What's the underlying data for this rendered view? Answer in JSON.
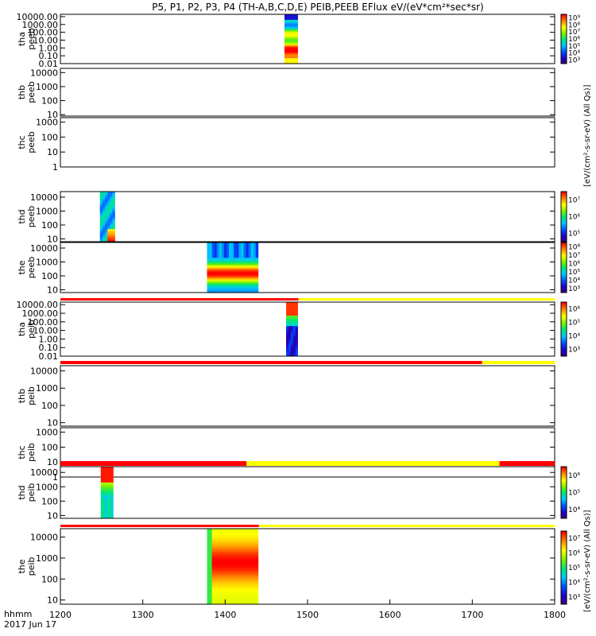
{
  "chart_data": {
    "type": "heatmap",
    "title": "P5, P1, P2, P3, P4 (TH-A,B,C,D,E) PEIB,PEEB EFlux eV/(eV*cm²*sec*sr)",
    "x_range": [
      1200,
      1800
    ],
    "x_ticks": [
      "1200",
      "1300",
      "1400",
      "1500",
      "1600",
      "1700",
      "1800"
    ],
    "x_footer": {
      "line1": "hhmm",
      "line2": "2017 Jun 17"
    },
    "colorbar_unit": "eV/(cm²-s-sr-eV) (All Qs)",
    "colorbar_label_top": "[eV/(cm²-s-sr-eV) (All Qs)]",
    "colorbar_label_bottom": "[eV/(cm²-s-sr-eV) (All Qs)]",
    "panels": [
      {
        "id": "tha_peeb",
        "probe": "tha",
        "product": "peeb",
        "y_ticks": [
          "0.01",
          "0.10",
          "1.00",
          "10.00",
          "100.00",
          "1000.00",
          "10000.00"
        ],
        "y_log_range": [
          -2,
          4.3
        ],
        "colorbar_ticks": [
          "10³",
          "10⁴",
          "10⁵",
          "10⁶",
          "10⁷",
          "10⁸",
          "10⁹"
        ],
        "data_blocks": [
          {
            "t_start": 1472,
            "t_end": 1488,
            "profile": "bottom_hot"
          }
        ],
        "quality_bar": []
      },
      {
        "id": "thb_peeb",
        "probe": "thb",
        "product": "peeb",
        "y_ticks": [
          "10",
          "100",
          "1000",
          "10000"
        ],
        "y_log_range": [
          0.9,
          4.3
        ],
        "colorbar_ticks": [],
        "data_blocks": [],
        "quality_bar": []
      },
      {
        "id": "thc_peeb",
        "probe": "thc",
        "product": "peeb",
        "y_ticks": [
          "1",
          "10",
          "100",
          "1000"
        ],
        "y_log_range": [
          0,
          3.3
        ],
        "colorbar_ticks": [],
        "data_blocks": [],
        "quality_bar": []
      },
      {
        "id": "thd_peeb",
        "probe": "thd",
        "product": "peeb",
        "y_ticks": [
          "10",
          "100",
          "1000",
          "10000"
        ],
        "y_log_range": [
          0.8,
          4.4
        ],
        "colorbar_ticks": [
          "10⁵",
          "10⁶",
          "10⁷"
        ],
        "data_blocks": [
          {
            "t_start": 1248,
            "t_end": 1266,
            "profile": "cool_spike"
          }
        ],
        "quality_bar": []
      },
      {
        "id": "the_peeb",
        "probe": "the",
        "product": "peeb",
        "y_ticks": [
          "10",
          "100",
          "1000",
          "10000"
        ],
        "y_log_range": [
          0.8,
          4.4
        ],
        "colorbar_ticks": [
          "10³",
          "10⁴",
          "10⁵",
          "10⁶",
          "10⁷",
          "10⁸"
        ],
        "data_blocks": [
          {
            "t_start": 1378,
            "t_end": 1440,
            "profile": "mid_hot"
          }
        ],
        "quality_bar": []
      },
      {
        "id": "tha_peib",
        "probe": "tha",
        "product": "peib",
        "y_ticks": [
          "0.01",
          "0.10",
          "1.00",
          "10.00",
          "100.00",
          "1000.00",
          "10000.00"
        ],
        "y_log_range": [
          -2,
          4.3
        ],
        "colorbar_ticks": [
          "10³",
          "10⁴",
          "10⁵",
          "10⁶"
        ],
        "data_blocks": [
          {
            "t_start": 1474,
            "t_end": 1488,
            "profile": "top_hot"
          }
        ],
        "quality_bar": [
          {
            "t_start": 1200,
            "t_end": 1489,
            "color": "#ff0000"
          },
          {
            "t_start": 1489,
            "t_end": 1800,
            "color": "#ffff00"
          }
        ]
      },
      {
        "id": "thb_peib",
        "probe": "thb",
        "product": "peib",
        "y_ticks": [
          "10",
          "100",
          "1000",
          "10000"
        ],
        "y_log_range": [
          0.8,
          4.3
        ],
        "colorbar_ticks": [],
        "data_blocks": [],
        "quality_bar": [
          {
            "t_start": 1200,
            "t_end": 1712,
            "color": "#ff0000"
          },
          {
            "t_start": 1712,
            "t_end": 1800,
            "color": "#ffff00"
          }
        ]
      },
      {
        "id": "thc_peib",
        "probe": "thc",
        "product": "peib",
        "y_ticks": [
          "1",
          "10",
          "100",
          "1000"
        ],
        "y_log_range": [
          0,
          3.3
        ],
        "colorbar_ticks": [],
        "data_blocks": [],
        "quality_bar": []
      },
      {
        "id": "thd_peib",
        "probe": "thd",
        "product": "peib",
        "y_ticks": [
          "10",
          "100",
          "1000",
          "10000"
        ],
        "y_log_range": [
          0.8,
          4.4
        ],
        "colorbar_ticks": [
          "10⁴",
          "10⁵",
          "10⁶"
        ],
        "data_blocks": [
          {
            "t_start": 1249,
            "t_end": 1264,
            "profile": "top_hot_green"
          }
        ],
        "quality_bar": [
          {
            "t_start": 1200,
            "t_end": 1426,
            "color": "#ff0000"
          },
          {
            "t_start": 1426,
            "t_end": 1733,
            "color": "#ffff00"
          },
          {
            "t_start": 1733,
            "t_end": 1800,
            "color": "#ff0000"
          }
        ]
      },
      {
        "id": "the_peib",
        "probe": "the",
        "product": "peib",
        "y_ticks": [
          "10",
          "100",
          "1000",
          "10000"
        ],
        "y_log_range": [
          0.8,
          4.4
        ],
        "colorbar_ticks": [
          "10³",
          "10⁴",
          "10⁵",
          "10⁶",
          "10⁷"
        ],
        "data_blocks": [
          {
            "t_start": 1378,
            "t_end": 1440,
            "profile": "broad_hot"
          }
        ],
        "quality_bar": [
          {
            "t_start": 1200,
            "t_end": 1441,
            "color": "#ff0000"
          },
          {
            "t_start": 1441,
            "t_end": 1800,
            "color": "#ffff00"
          }
        ]
      }
    ]
  }
}
